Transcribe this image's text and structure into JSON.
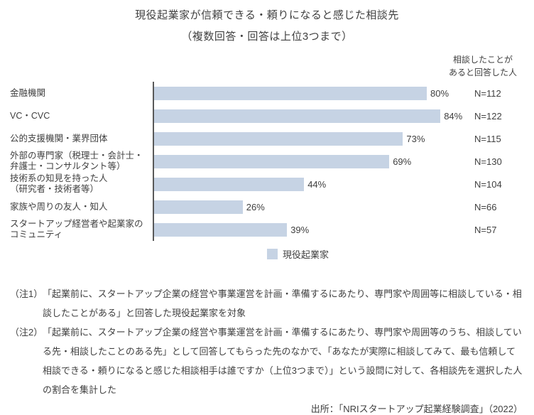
{
  "title": "現役起業家が信頼できる・頼りになると感じた相談先",
  "subtitle": "（複数回答・回答は上位3つまで）",
  "right_header": "相談したことが\nあると回答した人",
  "legend": {
    "label": "現役起業家"
  },
  "chart_data": {
    "type": "bar",
    "orientation": "horizontal",
    "title": "現役起業家が信頼できる・頼りになると感じた相談先（複数回答・回答は上位3つまで）",
    "series_name": "現役起業家",
    "bar_color": "#c6d3e4",
    "axis_color": "#595959",
    "xlim": [
      0,
      100
    ],
    "unit": "%",
    "categories": [
      "金融機関",
      "VC・CVC",
      "公的支援機関・業界団体",
      "外部の専門家（税理士・会計士・\n弁護士・コンサルタント等）",
      "技術系の知見を持った人\n（研究者・技術者等）",
      "家族や周りの友人・知人",
      "スタートアップ経営者や起業家の\nコミュニティ"
    ],
    "values": [
      80,
      84,
      73,
      69,
      44,
      26,
      39
    ],
    "value_labels": [
      "80%",
      "84%",
      "73%",
      "69%",
      "44%",
      "26%",
      "39%"
    ],
    "n_header": "相談したことがあると回答した人",
    "n_values": [
      112,
      122,
      115,
      130,
      104,
      66,
      57
    ],
    "n_labels": [
      "N=112",
      "N=122",
      "N=115",
      "N=130",
      "N=104",
      "N=66",
      "N=57"
    ]
  },
  "notes": [
    {
      "label": "（注1）",
      "text": "「起業前に、スタートアップ企業の経営や事業運営を計画・準備するにあたり、専門家や周囲等に相談している・相談したことがある」と回答した現役起業家を対象"
    },
    {
      "label": "（注2）",
      "text": "「起業前に、スタートアップ企業の経営や事業運営を計画・準備するにあたり、専門家や周囲等のうち、相談している先・相談したことのある先」として回答してもらった先のなかで、「あなたが実際に相談してみて、最も信頼して相談できる・頼りになると感じた相談相手は誰ですか（上位3つまで）」という設問に対して、各相談先を選択した人の割合を集計した"
    }
  ],
  "source": "出所：「NRIスタートアップ起業経験調査」（2022）"
}
